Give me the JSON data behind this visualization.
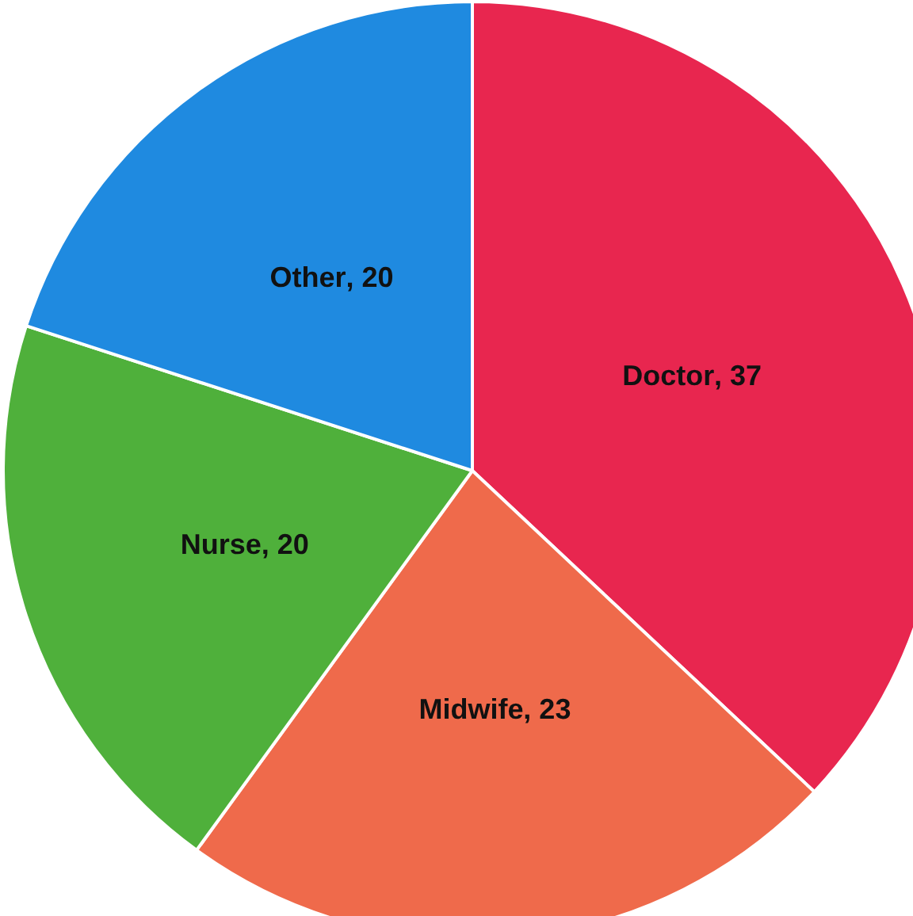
{
  "chart_data": {
    "type": "pie",
    "categories": [
      "Doctor",
      "Midwife",
      "Nurse",
      "Other"
    ],
    "values": [
      37,
      23,
      20,
      20
    ],
    "value_labels": [
      ", 37",
      ", 23",
      ", 20",
      ", 20"
    ],
    "colors": [
      "#e8264f",
      "#ef6a4b",
      "#4fb03b",
      "#1f8ae0"
    ]
  }
}
